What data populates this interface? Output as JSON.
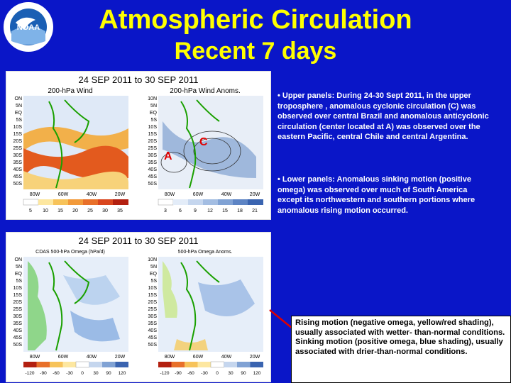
{
  "header": {
    "title": "Atmospheric Circulation",
    "subtitle": "Recent 7 days",
    "logo_text": "NOAA"
  },
  "top_panel": {
    "date_range": "24 SEP 2011 to 30 SEP 2011",
    "left_map_title": "200-hPa Wind",
    "right_map_title": "200-hPa Wind Anoms.",
    "lat_labels": [
      "ON",
      "5N",
      "EQ",
      "5S",
      "10S",
      "15S",
      "20S",
      "25S",
      "30S",
      "35S",
      "40S",
      "45S",
      "50S"
    ],
    "right_lat_labels": [
      "10N",
      "5N",
      "EQ",
      "5S",
      "10S",
      "15S",
      "20S",
      "25S",
      "30S",
      "35S",
      "40S",
      "45S",
      "50S"
    ],
    "lon_labels": [
      "80W",
      "60W",
      "40W",
      "20W"
    ],
    "right_lon_labels": [
      "80W",
      "60W",
      "40W",
      "20W"
    ],
    "left_scale": [
      "5",
      "10",
      "15",
      "20",
      "25",
      "30",
      "35"
    ],
    "right_scale": [
      "3",
      "6",
      "9",
      "12",
      "15",
      "18",
      "21"
    ],
    "marker_c": "C",
    "marker_a": "A"
  },
  "bottom_panel": {
    "date_range": "24 SEP 2011 to 30 SEP 2011",
    "left_map_title": "CDAS 500-hPa Omega (hPa/d)",
    "right_map_title": "500-hPa Omega Anoms.",
    "lat_labels": [
      "ON",
      "5N",
      "EQ",
      "5S",
      "10S",
      "15S",
      "20S",
      "25S",
      "30S",
      "35S",
      "40S",
      "45S",
      "50S"
    ],
    "right_lat_labels": [
      "10N",
      "5N",
      "EQ",
      "5S",
      "10S",
      "15S",
      "20S",
      "25S",
      "30S",
      "35S",
      "40S",
      "45S",
      "50S"
    ],
    "lon_labels": [
      "80W",
      "60W",
      "40W",
      "20W"
    ],
    "right_lon_labels": [
      "80W",
      "60W",
      "40W",
      "20W"
    ],
    "left_scale": [
      "-120",
      "-90",
      "-60",
      "-30",
      "0",
      "30",
      "90",
      "120"
    ],
    "right_scale": [
      "-120",
      "-90",
      "-60",
      "-30",
      "0",
      "30",
      "90",
      "120"
    ]
  },
  "bullets": {
    "upper": "• Upper panels: During 24-30 Sept 2011, in the upper troposphere , anomalous cyclonic circulation (C) was observed over central Brazil and anomalous anticyclonic circulation (center located at A) was observed over the eastern Pacific, central Chile and central Argentina.",
    "lower": "• Lower panels: Anomalous sinking motion (positive omega) was observed over much of South America except its northwestern and southern portions where anomalous rising motion occurred."
  },
  "note": {
    "rising": "Rising motion (negative omega, yellow/red shading), usually associated with wetter- than-normal conditions.",
    "sinking": "Sinking motion (positive omega, blue shading), usually associated with drier-than-normal conditions."
  },
  "colors": {
    "background": "#0a16c8",
    "title": "#ffff00",
    "marker": "#e00000"
  }
}
